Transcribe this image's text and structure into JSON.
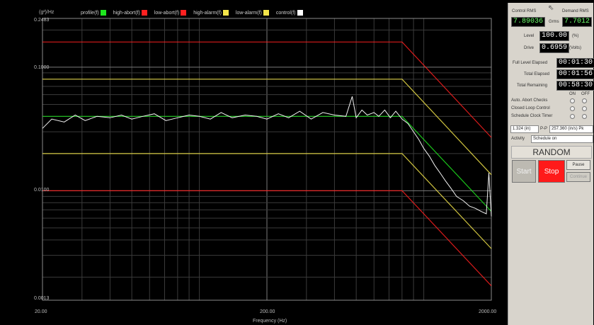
{
  "legend": [
    {
      "label": "profile(f)",
      "color": "#1ee61e"
    },
    {
      "label": "high-abort(f)",
      "color": "#ff2020"
    },
    {
      "label": "low-abort(f)",
      "color": "#ff2020"
    },
    {
      "label": "high-alarm(f)",
      "color": "#f5e64a"
    },
    {
      "label": "low-alarm(f)",
      "color": "#f5e64a"
    },
    {
      "label": "control(f)",
      "color": "#ffffff"
    }
  ],
  "chart_data": {
    "type": "line",
    "ylabel": "(g²)/Hz",
    "xlabel": "Frequency (Hz)",
    "x_scale": "log",
    "y_scale": "log",
    "xlim": [
      20,
      2000
    ],
    "ylim": [
      0.0013,
      0.2483
    ],
    "x_ticks": [
      "20.00",
      "200.00",
      "2000.00"
    ],
    "y_ticks": [
      "0.2483",
      "0.1000",
      "0.0100",
      "0.0013"
    ],
    "series": [
      {
        "name": "profile(f)",
        "x": [
          20,
          800,
          2000
        ],
        "y": [
          0.04,
          0.04,
          0.0068
        ]
      },
      {
        "name": "high-abort(f)",
        "x": [
          20,
          800,
          2000
        ],
        "y": [
          0.16,
          0.16,
          0.027
        ]
      },
      {
        "name": "low-abort(f)",
        "x": [
          20,
          800,
          2000
        ],
        "y": [
          0.01,
          0.01,
          0.0017
        ]
      },
      {
        "name": "high-alarm(f)",
        "x": [
          20,
          800,
          2000
        ],
        "y": [
          0.08,
          0.08,
          0.0135
        ]
      },
      {
        "name": "low-alarm(f)",
        "x": [
          20,
          800,
          2000
        ],
        "y": [
          0.02,
          0.02,
          0.0034
        ]
      },
      {
        "name": "control(f)",
        "x": [
          20,
          22,
          25,
          28,
          31,
          35,
          40,
          45,
          50,
          56,
          63,
          71,
          80,
          90,
          100,
          112,
          125,
          140,
          160,
          180,
          200,
          225,
          250,
          280,
          315,
          355,
          400,
          450,
          480,
          500,
          530,
          560,
          600,
          630,
          670,
          710,
          750,
          800,
          850,
          900,
          950,
          1000,
          1060,
          1120,
          1180,
          1250,
          1320,
          1400,
          1500,
          1600,
          1700,
          1800,
          1900,
          1950,
          2000
        ],
        "y": [
          0.032,
          0.038,
          0.036,
          0.041,
          0.037,
          0.04,
          0.039,
          0.041,
          0.038,
          0.04,
          0.042,
          0.037,
          0.039,
          0.041,
          0.04,
          0.038,
          0.043,
          0.039,
          0.041,
          0.04,
          0.038,
          0.042,
          0.039,
          0.044,
          0.038,
          0.043,
          0.041,
          0.04,
          0.058,
          0.039,
          0.045,
          0.041,
          0.043,
          0.04,
          0.045,
          0.039,
          0.044,
          0.038,
          0.035,
          0.03,
          0.026,
          0.022,
          0.019,
          0.016,
          0.014,
          0.012,
          0.0105,
          0.009,
          0.0083,
          0.0075,
          0.0072,
          0.0068,
          0.0065,
          0.014,
          0.0062
        ]
      }
    ]
  },
  "side": {
    "control_rms_label": "Control RMS",
    "demand_rms_label": "Demand RMS",
    "control_rms": "7.89036",
    "grms_unit": "Grms",
    "demand_rms": "7.7012",
    "level_label": "Level",
    "level_value": "100.00",
    "level_unit": "(%)",
    "drive_label": "Drive",
    "drive_value": "0.6959",
    "drive_unit": "(Volts)",
    "full_elapsed_label": "Full Level Elapsed",
    "full_elapsed": "00:01:30",
    "total_elapsed_label": "Total Elapsed",
    "total_elapsed": "00:01:56",
    "total_remaining_label": "Total Remaining",
    "total_remaining": "00:58:30",
    "on_label": "ON",
    "off_label": "OFF",
    "check_1": "Auto. Abort Checks",
    "check_2": "Closed Loop Control",
    "check_3": "Schedule Clock Timer",
    "pp_left": "1.324 (in)",
    "pp_mid": "P-P",
    "pp_right": "257.360 (in/s) Pk",
    "activity_label": "Activity",
    "activity_value": "Schedule on",
    "mode": "RANDOM",
    "start": "Start",
    "stop": "Stop",
    "pause": "Pause",
    "continue": "Continue"
  }
}
